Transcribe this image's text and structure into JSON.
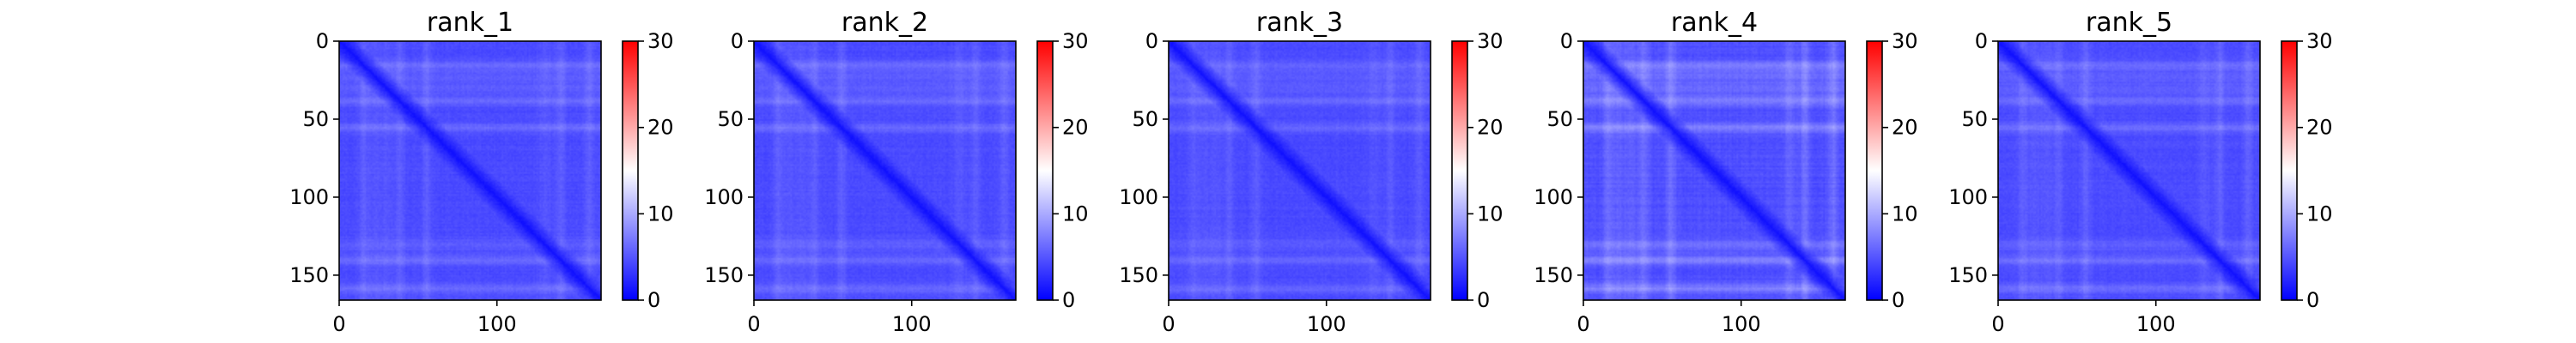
{
  "chart_data": [
    {
      "type": "heatmap",
      "title": "rank_1",
      "matrix_size": 166,
      "xticks": [
        "0",
        "100"
      ],
      "yticks": [
        "0",
        "50",
        "100",
        "150"
      ],
      "xlim": [
        0,
        166
      ],
      "ylim": [
        166,
        0
      ],
      "colormap": "bwr",
      "colormap_colors": [
        "#0000ff",
        "#ffffff",
        "#ff0000"
      ],
      "vmin": 0,
      "vmax": 30,
      "colorbar_ticks": [
        "0",
        "10",
        "20",
        "30"
      ],
      "diagonal_value": 1,
      "typical_offdiagonal_value": 4,
      "max_observed_value": 10,
      "bright_row_bands": [
        15,
        38,
        55,
        140,
        158
      ],
      "bright_col_bands": [
        22,
        30,
        130
      ],
      "band_strength": 0.7
    },
    {
      "type": "heatmap",
      "title": "rank_2",
      "matrix_size": 166,
      "xticks": [
        "0",
        "100"
      ],
      "yticks": [
        "0",
        "50",
        "100",
        "150"
      ],
      "xlim": [
        0,
        166
      ],
      "ylim": [
        166,
        0
      ],
      "colormap": "bwr",
      "colormap_colors": [
        "#0000ff",
        "#ffffff",
        "#ff0000"
      ],
      "vmin": 0,
      "vmax": 30,
      "colorbar_ticks": [
        "0",
        "10",
        "20",
        "30"
      ],
      "diagonal_value": 1,
      "typical_offdiagonal_value": 4,
      "max_observed_value": 10,
      "bright_row_bands": [
        15,
        38,
        55,
        140,
        158
      ],
      "bright_col_bands": [
        22,
        30,
        130
      ],
      "band_strength": 0.7
    },
    {
      "type": "heatmap",
      "title": "rank_3",
      "matrix_size": 166,
      "xticks": [
        "0",
        "100"
      ],
      "yticks": [
        "0",
        "50",
        "100",
        "150"
      ],
      "xlim": [
        0,
        166
      ],
      "ylim": [
        166,
        0
      ],
      "colormap": "bwr",
      "colormap_colors": [
        "#0000ff",
        "#ffffff",
        "#ff0000"
      ],
      "vmin": 0,
      "vmax": 30,
      "colorbar_ticks": [
        "0",
        "10",
        "20",
        "30"
      ],
      "diagonal_value": 1,
      "typical_offdiagonal_value": 4,
      "max_observed_value": 10,
      "bright_row_bands": [
        15,
        38,
        55,
        140,
        158
      ],
      "bright_col_bands": [
        22,
        30,
        130
      ],
      "band_strength": 0.65
    },
    {
      "type": "heatmap",
      "title": "rank_4",
      "matrix_size": 166,
      "xticks": [
        "0",
        "100"
      ],
      "yticks": [
        "0",
        "50",
        "100",
        "150"
      ],
      "xlim": [
        0,
        166
      ],
      "ylim": [
        166,
        0
      ],
      "colormap": "bwr",
      "colormap_colors": [
        "#0000ff",
        "#ffffff",
        "#ff0000"
      ],
      "vmin": 0,
      "vmax": 30,
      "colorbar_ticks": [
        "0",
        "10",
        "20",
        "30"
      ],
      "diagonal_value": 1,
      "typical_offdiagonal_value": 4,
      "max_observed_value": 11,
      "bright_row_bands": [
        15,
        38,
        55,
        140,
        158
      ],
      "bright_col_bands": [
        22,
        30,
        130
      ],
      "band_strength": 0.95
    },
    {
      "type": "heatmap",
      "title": "rank_5",
      "matrix_size": 166,
      "xticks": [
        "0",
        "100"
      ],
      "yticks": [
        "0",
        "50",
        "100",
        "150"
      ],
      "xlim": [
        0,
        166
      ],
      "ylim": [
        166,
        0
      ],
      "colormap": "bwr",
      "colormap_colors": [
        "#0000ff",
        "#ffffff",
        "#ff0000"
      ],
      "vmin": 0,
      "vmax": 30,
      "colorbar_ticks": [
        "0",
        "10",
        "20",
        "30"
      ],
      "diagonal_value": 1,
      "typical_offdiagonal_value": 4,
      "max_observed_value": 10,
      "bright_row_bands": [
        15,
        38,
        55,
        140,
        158
      ],
      "bright_col_bands": [
        22,
        30,
        130
      ],
      "band_strength": 0.75
    }
  ]
}
